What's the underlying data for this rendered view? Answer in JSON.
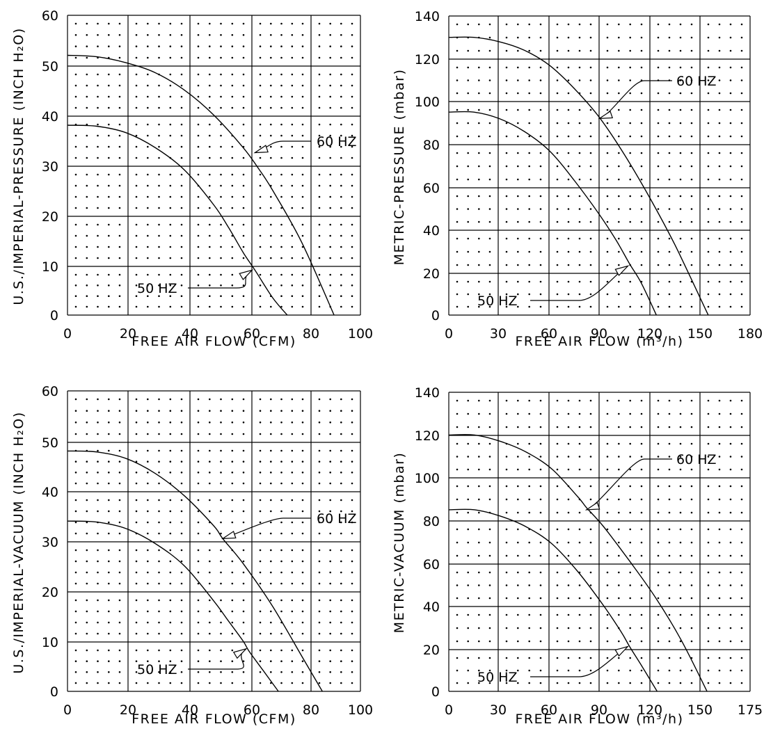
{
  "chart_data": [
    {
      "type": "line",
      "xlabel": "FREE AIR FLOW (CFM)",
      "ylabel": "U.S./IMPERIAL-PRESSURE (INCH H₂O)",
      "xlim": [
        0,
        100
      ],
      "ylim": [
        0,
        60
      ],
      "xticks": [
        "0",
        "20",
        "40",
        "60",
        "80",
        "100"
      ],
      "yticks": [
        "0",
        "10",
        "20",
        "30",
        "40",
        "50",
        "60"
      ],
      "grid": true,
      "series": [
        {
          "name": "60 HZ",
          "x": [
            0,
            10,
            20,
            30,
            40,
            50,
            60,
            65,
            70,
            80,
            91
          ],
          "y": [
            52,
            51.7,
            50.5,
            48.5,
            45,
            40,
            33.5,
            29.5,
            25,
            14.5,
            0
          ]
        },
        {
          "name": "50 HZ",
          "x": [
            0,
            10,
            20,
            30,
            40,
            50,
            55,
            60,
            64,
            70,
            75
          ],
          "y": [
            38,
            37.8,
            36.5,
            33.5,
            29,
            22,
            17.5,
            12.5,
            9,
            3.5,
            0
          ]
        }
      ],
      "annotations": [
        {
          "text": "60 HZ",
          "point": [
            64,
            32.5
          ]
        },
        {
          "text": "50 HZ",
          "point": [
            63,
            9
          ]
        }
      ]
    },
    {
      "type": "line",
      "xlabel": "FREE AIR FLOW (m³/h)",
      "ylabel": "METRIC-PRESSURE (mbar)",
      "xlim": [
        0,
        180
      ],
      "ylim": [
        0,
        140
      ],
      "xticks": [
        "0",
        "30",
        "60",
        "90",
        "120",
        "150",
        "180"
      ],
      "yticks": [
        "0",
        "20",
        "40",
        "60",
        "80",
        "100",
        "120",
        "140"
      ],
      "grid": true,
      "series": [
        {
          "name": "60 HZ",
          "x": [
            0,
            15,
            30,
            45,
            60,
            75,
            90,
            105,
            120,
            135,
            155
          ],
          "y": [
            130,
            130,
            128,
            124,
            117,
            106,
            92.5,
            75,
            55,
            33,
            0
          ]
        },
        {
          "name": "50 HZ",
          "x": [
            0,
            15,
            30,
            45,
            60,
            75,
            90,
            100,
            108,
            115,
            124
          ],
          "y": [
            95,
            95,
            92,
            86,
            77,
            63,
            47,
            35,
            24,
            15,
            0
          ]
        }
      ],
      "annotations": [
        {
          "text": "60 HZ",
          "point": [
            90,
            92
          ]
        },
        {
          "text": "50 HZ",
          "point": [
            107,
            23
          ]
        }
      ]
    },
    {
      "type": "line",
      "xlabel": "FREE AIR FLOW (CFM)",
      "ylabel": "U.S./IMPERIAL-VACUUM (INCH H₂O)",
      "xlim": [
        0,
        100
      ],
      "ylim": [
        0,
        60
      ],
      "xticks": [
        "0",
        "20",
        "40",
        "60",
        "80",
        "100"
      ],
      "yticks": [
        "0",
        "10",
        "20",
        "30",
        "40",
        "50",
        "60"
      ],
      "grid": true,
      "series": [
        {
          "name": "60 HZ",
          "x": [
            0,
            10,
            20,
            30,
            40,
            50,
            53,
            60,
            70,
            80,
            87
          ],
          "y": [
            48,
            47.8,
            46.5,
            43.5,
            39,
            33,
            30.5,
            25.5,
            17,
            7,
            0
          ]
        },
        {
          "name": "50 HZ",
          "x": [
            0,
            10,
            20,
            30,
            40,
            50,
            55,
            60,
            62,
            67,
            72
          ],
          "y": [
            34,
            33.8,
            32.5,
            29.5,
            25,
            18,
            14,
            10,
            8,
            4,
            0
          ]
        }
      ],
      "annotations": [
        {
          "text": "60 HZ",
          "point": [
            53,
            30.5
          ]
        },
        {
          "text": "50 HZ",
          "point": [
            61,
            8.5
          ]
        }
      ]
    },
    {
      "type": "line",
      "xlabel": "FREE AIR FLOW (m³/h)",
      "ylabel": "METRIC-VACUUM (mbar)",
      "xlim": [
        0,
        175
      ],
      "ylim": [
        0,
        140
      ],
      "xticks": [
        "0",
        "30",
        "60",
        "90",
        "120",
        "150",
        "175"
      ],
      "yticks": [
        "0",
        "20",
        "40",
        "60",
        "80",
        "100",
        "120",
        "140"
      ],
      "grid": true,
      "series": [
        {
          "name": "60 HZ",
          "x": [
            0,
            15,
            30,
            45,
            60,
            75,
            80,
            90,
            105,
            120,
            135,
            150
          ],
          "y": [
            120,
            120,
            117,
            112,
            104,
            91,
            86,
            77,
            61,
            44,
            24,
            0
          ]
        },
        {
          "name": "50 HZ",
          "x": [
            0,
            15,
            30,
            45,
            60,
            75,
            90,
            100,
            105,
            112,
            121
          ],
          "y": [
            85,
            85,
            82,
            77,
            69,
            56,
            40,
            28,
            21,
            12,
            0
          ]
        }
      ],
      "annotations": [
        {
          "text": "60 HZ",
          "point": [
            80,
            85
          ]
        },
        {
          "text": "50 HZ",
          "point": [
            104,
            21
          ]
        }
      ]
    }
  ]
}
